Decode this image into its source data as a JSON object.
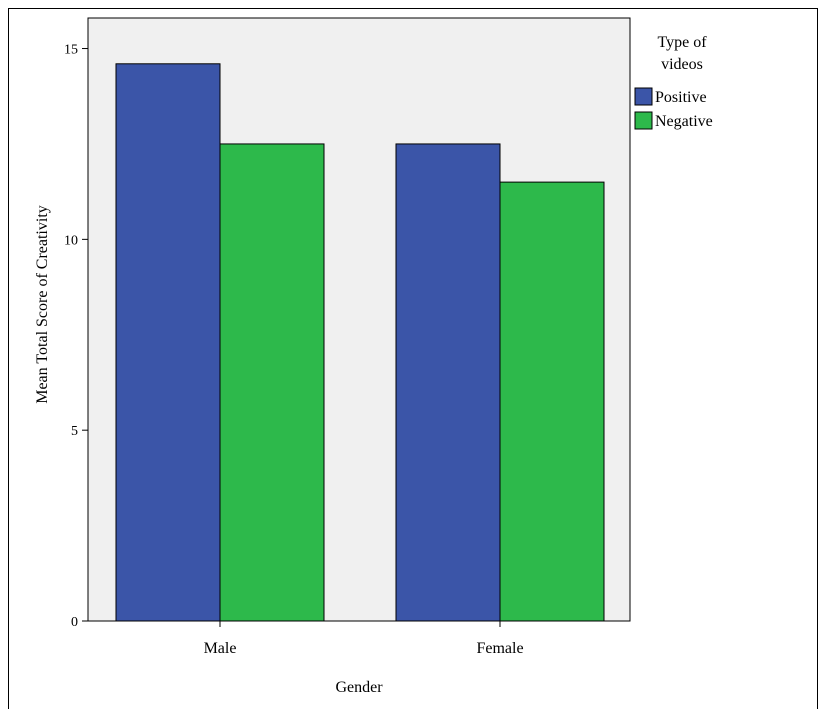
{
  "chart_data": {
    "type": "bar",
    "categories": [
      "Male",
      "Female"
    ],
    "series": [
      {
        "name": "Positive",
        "values": [
          14.6,
          12.5
        ],
        "color": "#3b55a8"
      },
      {
        "name": "Negative",
        "values": [
          12.5,
          11.5
        ],
        "color": "#2db94b"
      }
    ],
    "xlabel": "Gender",
    "ylabel": "Mean Total Score of Creativity",
    "ylim": [
      0,
      15
    ],
    "yticks": [
      0,
      5,
      10,
      15
    ],
    "legend_title_lines": [
      "Type of",
      "videos"
    ],
    "legend_position": "top-right",
    "plot_background": "#f0f0f0",
    "grid": false
  }
}
